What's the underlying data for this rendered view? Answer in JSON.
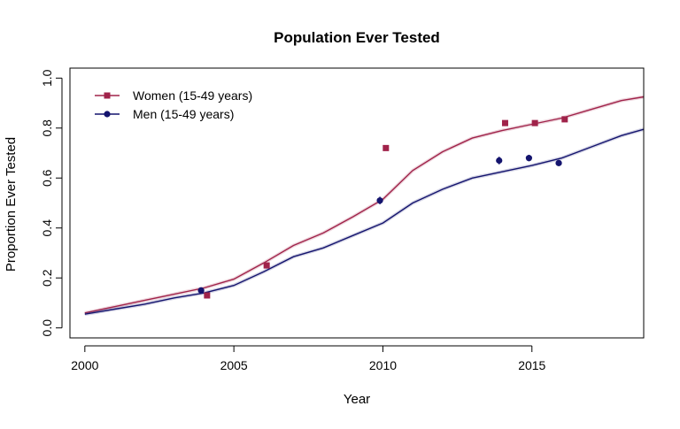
{
  "chart_data": {
    "type": "line",
    "title": "Population Ever Tested",
    "xlabel": "Year",
    "ylabel": "Proportion Ever Tested",
    "xlim": [
      1999.5,
      2018.75
    ],
    "ylim": [
      -0.04,
      1.04
    ],
    "xticks": [
      2000,
      2005,
      2010,
      2015
    ],
    "yticks": [
      0.0,
      0.2,
      0.4,
      0.6,
      0.8,
      1.0
    ],
    "ytick_labels": [
      "0.0",
      "0.2",
      "0.4",
      "0.6",
      "0.8",
      "1.0"
    ],
    "grid": false,
    "legend_position": "top-left",
    "colors": {
      "women": "#a0234a",
      "men": "#14146e"
    },
    "series": [
      {
        "name": "Women (15-49 years)",
        "marker": "square",
        "line": {
          "x": [
            2000,
            2001,
            2002,
            2003,
            2004,
            2005,
            2006,
            2007,
            2008,
            2009,
            2010,
            2011,
            2012,
            2013,
            2014,
            2015,
            2016,
            2017,
            2018,
            2018.75
          ],
          "y": [
            0.06,
            0.085,
            0.11,
            0.135,
            0.16,
            0.195,
            0.26,
            0.33,
            0.38,
            0.445,
            0.515,
            0.63,
            0.705,
            0.76,
            0.79,
            0.815,
            0.84,
            0.875,
            0.91,
            0.925
          ]
        },
        "points": {
          "x": [
            2004.1,
            2006.1,
            2010.1,
            2014.1,
            2015.1,
            2016.1
          ],
          "y": [
            0.13,
            0.25,
            0.72,
            0.82,
            0.82,
            0.835
          ]
        }
      },
      {
        "name": "Men (15-49 years)",
        "marker": "circle",
        "line": {
          "x": [
            2000,
            2001,
            2002,
            2003,
            2004,
            2005,
            2006,
            2007,
            2008,
            2009,
            2010,
            2011,
            2012,
            2013,
            2014,
            2015,
            2016,
            2017,
            2018,
            2018.75
          ],
          "y": [
            0.055,
            0.075,
            0.095,
            0.12,
            0.14,
            0.17,
            0.225,
            0.285,
            0.32,
            0.37,
            0.42,
            0.5,
            0.555,
            0.6,
            0.625,
            0.65,
            0.68,
            0.725,
            0.77,
            0.795
          ]
        },
        "points": {
          "x": [
            2003.9,
            2009.9,
            2013.9,
            2014.9,
            2015.9
          ],
          "y": [
            0.15,
            0.51,
            0.67,
            0.68,
            0.66
          ]
        },
        "error_bars": [
          0.012,
          0.015,
          0.015,
          0.013,
          0.012
        ]
      }
    ]
  }
}
